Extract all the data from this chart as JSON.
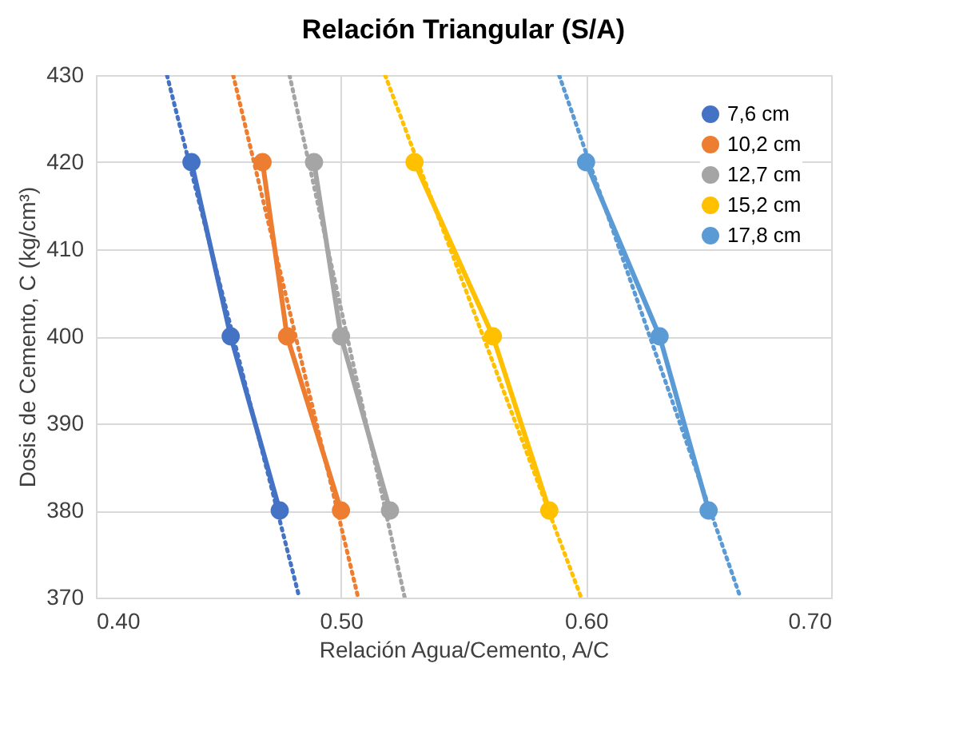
{
  "chart_data": {
    "type": "line",
    "title": "Relación Triangular (S/A)",
    "xlabel": "Relación Agua/Cemento, A/C",
    "ylabel": "Dosis de Cemento, C (kg/cm³)",
    "xlim": [
      0.4,
      0.7
    ],
    "xticks": [
      {
        "value": 0.4,
        "label": "0.40"
      },
      {
        "value": 0.5,
        "label": "0.50"
      },
      {
        "value": 0.6,
        "label": "0.60"
      },
      {
        "value": 0.7,
        "label": "0.70"
      }
    ],
    "ylim": [
      370,
      430
    ],
    "yticks": [
      370,
      380,
      390,
      400,
      410,
      420,
      430
    ],
    "grid": true,
    "legend": "top right",
    "marker": "circle",
    "line_style": "solid",
    "series": [
      {
        "name": "7,6 cm",
        "color": "#4472c4",
        "x": [
          0.439,
          0.455,
          0.475
        ],
        "values": [
          420,
          400,
          380
        ]
      },
      {
        "name": "10,2 cm",
        "color": "#ed7d31",
        "x": [
          0.468,
          0.478,
          0.5
        ],
        "values": [
          420,
          400,
          380
        ]
      },
      {
        "name": "12,7 cm",
        "color": "#a5a5a5",
        "x": [
          0.489,
          0.5,
          0.52
        ],
        "values": [
          420,
          400,
          380
        ]
      },
      {
        "name": "15,2 cm",
        "color": "#ffc000",
        "x": [
          0.53,
          0.562,
          0.585
        ],
        "values": [
          420,
          400,
          380
        ]
      },
      {
        "name": "17,8 cm",
        "color": "#5b9bd5",
        "x": [
          0.6,
          0.63,
          0.65
        ],
        "values": [
          420,
          400,
          380
        ]
      },
      {
        "color": "#4472c4",
        "type": "line",
        "line_style": "dotted",
        "marker": "none",
        "x": [
          0.429,
          0.483
        ],
        "values": [
          430,
          370
        ]
      },
      {
        "color": "#ed7d31",
        "type": "line",
        "line_style": "dotted",
        "marker": "none",
        "x": [
          0.456,
          0.507
        ],
        "values": [
          430,
          370
        ]
      },
      {
        "color": "#a5a5a5",
        "type": "line",
        "line_style": "dotted",
        "marker": "none",
        "x": [
          0.479,
          0.526
        ],
        "values": [
          430,
          370
        ]
      },
      {
        "color": "#ffc000",
        "type": "line",
        "line_style": "dotted",
        "marker": "none",
        "x": [
          0.518,
          0.598
        ],
        "values": [
          430,
          370
        ]
      },
      {
        "color": "#5b9bd5",
        "type": "line",
        "line_style": "dotted",
        "marker": "none",
        "x": [
          0.589,
          0.663
        ],
        "values": [
          430,
          370
        ]
      }
    ]
  }
}
